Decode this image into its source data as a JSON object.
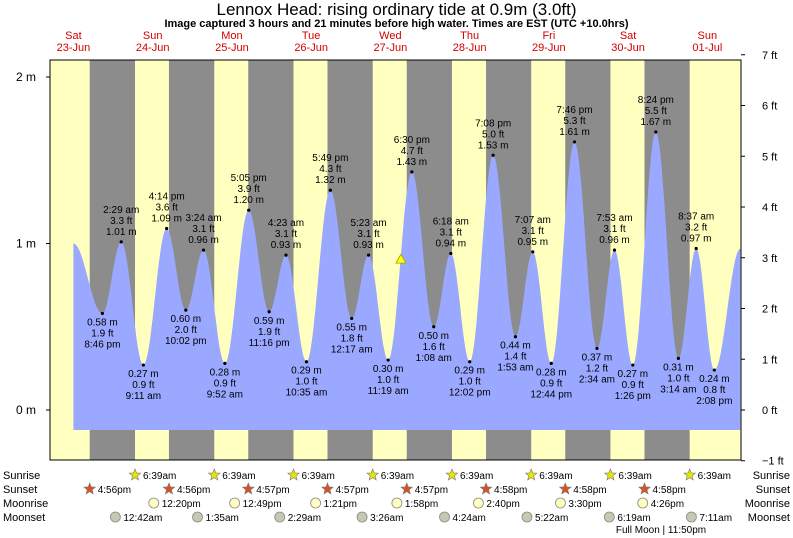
{
  "page": {
    "title": "Lennox Head: rising  ordinary tide at 0.9m (3.0ft)",
    "subtitle": "Image captured 3 hours and 21 minutes before high water. Times are EST (UTC +10.0hrs)"
  },
  "chart_data": {
    "type": "area",
    "title": "Lennox Head: rising  ordinary tide at 0.9m (3.0ft)",
    "subtitle": "Image captured 3 hours and 21 minutes before high water. Times are EST (UTC +10.0hrs)",
    "x_unit": "hours since 00:00 Sat 23-Jun",
    "xlim": [
      4.9,
      214.2
    ],
    "ylim": [
      -0.3,
      2.1
    ],
    "left_ticks": [
      {
        "value": 0,
        "label": "0 m"
      },
      {
        "value": 1,
        "label": "1 m"
      },
      {
        "value": 2,
        "label": "2 m"
      }
    ],
    "right_ticks": [
      {
        "value": -0.3048,
        "label": "−1 ft"
      },
      {
        "value": 0,
        "label": "0 ft"
      },
      {
        "value": 0.3048,
        "label": "1 ft"
      },
      {
        "value": 0.6096,
        "label": "2 ft"
      },
      {
        "value": 0.9144,
        "label": "3 ft"
      },
      {
        "value": 1.2192,
        "label": "4 ft"
      },
      {
        "value": 1.524,
        "label": "5 ft"
      },
      {
        "value": 1.8288,
        "label": "6 ft"
      },
      {
        "value": 2.1336,
        "label": "7 ft"
      }
    ],
    "days": [
      {
        "name": "Sat",
        "date": "23-Jun",
        "x": 12
      },
      {
        "name": "Sun",
        "date": "24-Jun",
        "x": 36
      },
      {
        "name": "Mon",
        "date": "25-Jun",
        "x": 60
      },
      {
        "name": "Tue",
        "date": "26-Jun",
        "x": 84
      },
      {
        "name": "Wed",
        "date": "27-Jun",
        "x": 108
      },
      {
        "name": "Thu",
        "date": "28-Jun",
        "x": 132
      },
      {
        "name": "Fri",
        "date": "29-Jun",
        "x": 156
      },
      {
        "name": "Sat",
        "date": "30-Jun",
        "x": 180
      },
      {
        "name": "Sun",
        "date": "01-Jul",
        "x": 204
      }
    ],
    "nights": [
      [
        16.93,
        30.65
      ],
      [
        40.93,
        54.65
      ],
      [
        64.95,
        78.65
      ],
      [
        88.95,
        102.65
      ],
      [
        112.95,
        126.65
      ],
      [
        136.97,
        150.65
      ],
      [
        160.97,
        174.65
      ],
      [
        184.97,
        198.65
      ]
    ],
    "tide_start": {
      "x": 12.0,
      "y": 1.0
    },
    "tide_end": {
      "x": 214.0
    },
    "extremes": [
      {
        "x": 20.77,
        "y": 0.58,
        "type": "low",
        "time": "8:46 pm",
        "ft": "1.9 ft",
        "m": "0.58 m"
      },
      {
        "x": 26.48,
        "y": 1.01,
        "type": "high",
        "time": "2:29 am",
        "ft": "3.3 ft",
        "m": "1.01 m"
      },
      {
        "x": 33.18,
        "y": 0.27,
        "type": "low",
        "time": "9:11 am",
        "ft": "0.9 ft",
        "m": "0.27 m"
      },
      {
        "x": 40.23,
        "y": 1.09,
        "type": "high",
        "time": "4:14 pm",
        "ft": "3.6 ft",
        "m": "1.09 m"
      },
      {
        "x": 46.03,
        "y": 0.6,
        "type": "low",
        "time": "10:02 pm",
        "ft": "2.0 ft",
        "m": "0.60 m"
      },
      {
        "x": 51.4,
        "y": 0.96,
        "type": "high",
        "time": "3:24 am",
        "ft": "3.1 ft",
        "m": "0.96 m"
      },
      {
        "x": 57.87,
        "y": 0.28,
        "type": "low",
        "time": "9:52 am",
        "ft": "0.9 ft",
        "m": "0.28 m"
      },
      {
        "x": 65.08,
        "y": 1.2,
        "type": "high",
        "time": "5:05 pm",
        "ft": "3.9 ft",
        "m": "1.20 m"
      },
      {
        "x": 71.27,
        "y": 0.59,
        "type": "low",
        "time": "11:16 pm",
        "ft": "1.9 ft",
        "m": "0.59 m"
      },
      {
        "x": 76.38,
        "y": 0.93,
        "type": "high",
        "time": "4:23 am",
        "ft": "3.1 ft",
        "m": "0.93 m"
      },
      {
        "x": 82.58,
        "y": 0.29,
        "type": "low",
        "time": "10:35 am",
        "ft": "1.0 ft",
        "m": "0.29 m"
      },
      {
        "x": 89.82,
        "y": 1.32,
        "type": "high",
        "time": "5:49 pm",
        "ft": "4.3 ft",
        "m": "1.32 m"
      },
      {
        "x": 96.28,
        "y": 0.55,
        "type": "low",
        "time": "12:17 am",
        "ft": "1.8 ft",
        "m": "0.55 m"
      },
      {
        "x": 101.38,
        "y": 0.93,
        "type": "high",
        "time": "5:23 am",
        "ft": "3.1 ft",
        "m": "0.93 m"
      },
      {
        "x": 107.32,
        "y": 0.3,
        "type": "low",
        "time": "11:19 am",
        "ft": "1.0 ft",
        "m": "0.30 m"
      },
      {
        "x": 114.5,
        "y": 1.43,
        "type": "high",
        "time": "6:30 pm",
        "ft": "4.7 ft",
        "m": "1.43 m"
      },
      {
        "x": 121.13,
        "y": 0.5,
        "type": "low",
        "time": "1:08 am",
        "ft": "1.6 ft",
        "m": "0.50 m"
      },
      {
        "x": 126.3,
        "y": 0.94,
        "type": "high",
        "time": "6:18 am",
        "ft": "3.1 ft",
        "m": "0.94 m"
      },
      {
        "x": 132.03,
        "y": 0.29,
        "type": "low",
        "time": "12:02 pm",
        "ft": "1.0 ft",
        "m": "0.29 m"
      },
      {
        "x": 139.13,
        "y": 1.53,
        "type": "high",
        "time": "7:08 pm",
        "ft": "5.0 ft",
        "m": "1.53 m"
      },
      {
        "x": 145.88,
        "y": 0.44,
        "type": "low",
        "time": "1:53 am",
        "ft": "1.4 ft",
        "m": "0.44 m"
      },
      {
        "x": 151.12,
        "y": 0.95,
        "type": "high",
        "time": "7:07 am",
        "ft": "3.1 ft",
        "m": "0.95 m"
      },
      {
        "x": 156.73,
        "y": 0.28,
        "type": "low",
        "time": "12:44 pm",
        "ft": "0.9 ft",
        "m": "0.28 m"
      },
      {
        "x": 163.77,
        "y": 1.61,
        "type": "high",
        "time": "7:46 pm",
        "ft": "5.3 ft",
        "m": "1.61 m"
      },
      {
        "x": 170.57,
        "y": 0.37,
        "type": "low",
        "time": "2:34 am",
        "ft": "1.2 ft",
        "m": "0.37 m"
      },
      {
        "x": 175.88,
        "y": 0.96,
        "type": "high",
        "time": "7:53 am",
        "ft": "3.1 ft",
        "m": "0.96 m"
      },
      {
        "x": 181.43,
        "y": 0.27,
        "type": "low",
        "time": "1:26 pm",
        "ft": "0.9 ft",
        "m": "0.27 m"
      },
      {
        "x": 188.4,
        "y": 1.67,
        "type": "high",
        "time": "8:24 pm",
        "ft": "5.5 ft",
        "m": "1.67 m"
      },
      {
        "x": 195.23,
        "y": 0.31,
        "type": "low",
        "time": "3:14 am",
        "ft": "1.0 ft",
        "m": "0.31 m"
      },
      {
        "x": 200.62,
        "y": 0.97,
        "type": "high",
        "time": "8:37 am",
        "ft": "3.2 ft",
        "m": "0.97 m"
      },
      {
        "x": 206.13,
        "y": 0.24,
        "type": "low",
        "time": "2:08 pm",
        "ft": "0.8 ft",
        "m": "0.24 m"
      }
    ],
    "current_marker": {
      "x": 111.2,
      "y": 0.9
    },
    "events": {
      "sunrise": [
        {
          "x": 30.65,
          "time": "6:39am"
        },
        {
          "x": 54.65,
          "time": "6:39am"
        },
        {
          "x": 78.65,
          "time": "6:39am"
        },
        {
          "x": 102.65,
          "time": "6:39am"
        },
        {
          "x": 126.65,
          "time": "6:39am"
        },
        {
          "x": 150.65,
          "time": "6:39am"
        },
        {
          "x": 174.65,
          "time": "6:39am"
        },
        {
          "x": 198.65,
          "time": "6:39am"
        }
      ],
      "sunset": [
        {
          "x": 16.93,
          "time": "4:56pm"
        },
        {
          "x": 40.93,
          "time": "4:56pm"
        },
        {
          "x": 64.95,
          "time": "4:57pm"
        },
        {
          "x": 88.95,
          "time": "4:57pm"
        },
        {
          "x": 112.95,
          "time": "4:57pm"
        },
        {
          "x": 136.97,
          "time": "4:58pm"
        },
        {
          "x": 160.97,
          "time": "4:58pm"
        },
        {
          "x": 184.97,
          "time": "4:58pm"
        }
      ],
      "moonrise": [
        {
          "x": 36.33,
          "time": "12:20pm"
        },
        {
          "x": 60.82,
          "time": "12:49pm"
        },
        {
          "x": 85.35,
          "time": "1:21pm"
        },
        {
          "x": 109.97,
          "time": "1:58pm"
        },
        {
          "x": 134.67,
          "time": "2:40pm"
        },
        {
          "x": 159.5,
          "time": "3:30pm"
        },
        {
          "x": 184.43,
          "time": "4:26pm"
        }
      ],
      "moonset": [
        {
          "x": 24.7,
          "time": "12:42am"
        },
        {
          "x": 49.58,
          "time": "1:35am"
        },
        {
          "x": 74.48,
          "time": "2:29am"
        },
        {
          "x": 99.43,
          "time": "3:26am"
        },
        {
          "x": 124.4,
          "time": "4:24am"
        },
        {
          "x": 149.37,
          "time": "5:22am"
        },
        {
          "x": 174.32,
          "time": "6:19am"
        },
        {
          "x": 199.18,
          "time": "7:11am"
        }
      ]
    },
    "row_labels": {
      "sunrise": "Sunrise",
      "sunset": "Sunset",
      "moonrise": "Moonrise",
      "moonset": "Moonset"
    },
    "full_moon_note": "Full Moon | 11:50pm",
    "colors": {
      "day": "#ffffc0",
      "night": "#8c8c8c",
      "tide": "#9aa8ff",
      "sun": "#e6e600",
      "sunset": "#d9531e",
      "moon": "#ffffc0",
      "moonset": "#c8c8b0",
      "day_label": "#d40000"
    }
  }
}
